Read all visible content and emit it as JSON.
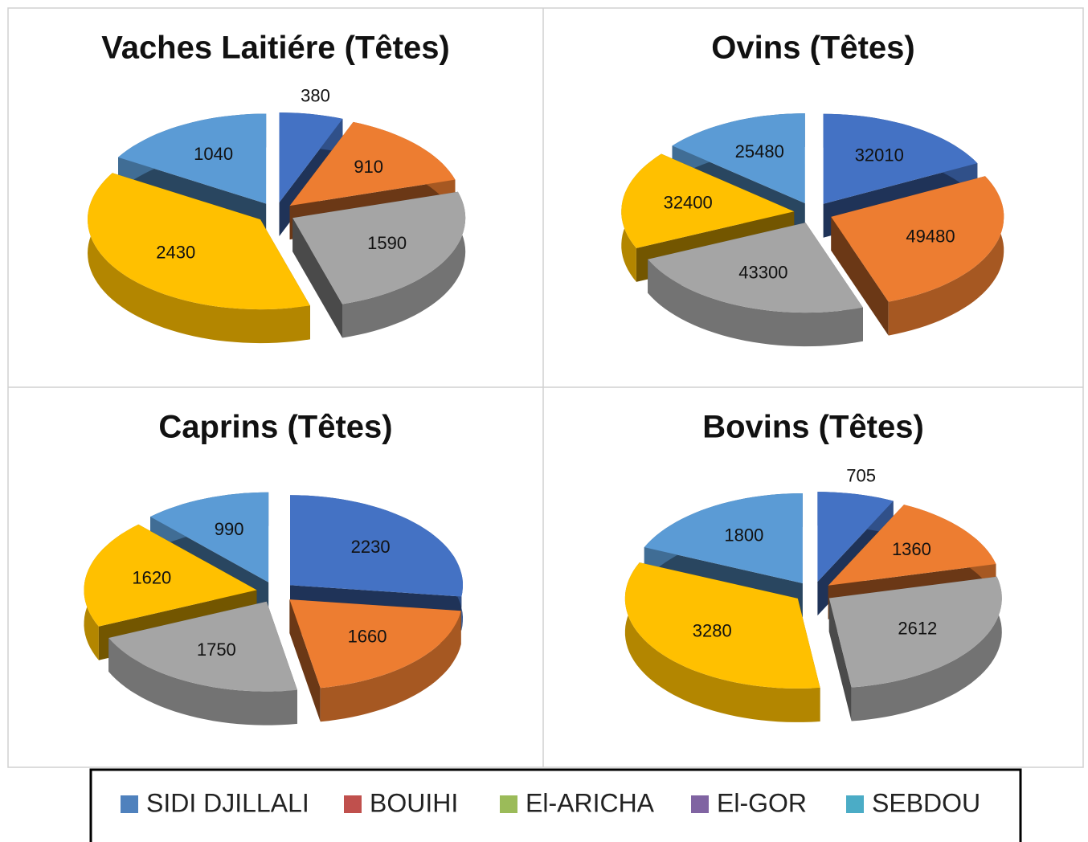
{
  "chart_data": [
    {
      "type": "pie",
      "title": "Vaches Laitiére (Têtes)",
      "values": [
        380,
        910,
        1590,
        2430,
        1040
      ],
      "colors": [
        "#4472c4",
        "#ed7d31",
        "#a5a5a5",
        "#ffc000",
        "#5b9bd5"
      ]
    },
    {
      "type": "pie",
      "title": "Ovins (Têtes)",
      "values": [
        32010,
        49480,
        43300,
        32400,
        25480
      ],
      "colors": [
        "#4472c4",
        "#ed7d31",
        "#a5a5a5",
        "#ffc000",
        "#5b9bd5"
      ]
    },
    {
      "type": "pie",
      "title": "Caprins (Têtes)",
      "values": [
        2230,
        1660,
        1750,
        1620,
        990
      ],
      "colors": [
        "#4472c4",
        "#ed7d31",
        "#a5a5a5",
        "#ffc000",
        "#5b9bd5"
      ]
    },
    {
      "type": "pie",
      "title": "Bovins (Têtes)",
      "values": [
        705,
        1360,
        2612,
        3280,
        1800
      ],
      "colors": [
        "#4472c4",
        "#ed7d31",
        "#a5a5a5",
        "#ffc000",
        "#5b9bd5"
      ]
    }
  ],
  "legend": {
    "names": [
      "SIDI DJILLALI",
      "BOUIHI",
      "El-ARICHA",
      "El-GOR",
      "SEBDOU"
    ],
    "colors": [
      "#4f81bd",
      "#c0504d",
      "#9bbb59",
      "#8064a2",
      "#4bacc6"
    ]
  }
}
